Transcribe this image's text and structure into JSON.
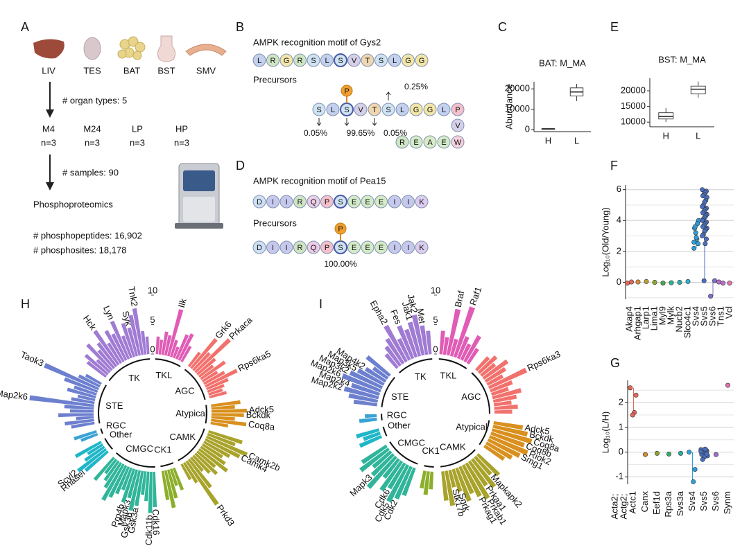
{
  "panel_a": {
    "letter": "A",
    "organs": [
      "LIV",
      "TES",
      "BAT",
      "BST",
      "SMV"
    ],
    "step1": "# organ types: 5",
    "groups": [
      {
        "name": "M4",
        "n": "n=3"
      },
      {
        "name": "M24",
        "n": "n=3"
      },
      {
        "name": "LP",
        "n": "n=3"
      },
      {
        "name": "HP",
        "n": "n=3"
      }
    ],
    "step2": "# samples: 90",
    "method": "Phosphoproteomics",
    "stats": [
      "# phosphopeptides: 16,902",
      "# phosphosites: 18,178"
    ]
  },
  "residue_colors": {
    "L": "#c3d0ee",
    "R": "#cfe6c4",
    "G": "#f2e6a8",
    "S": "#cfe3f3",
    "V": "#d5d0e8",
    "T": "#efd6b0",
    "P": "#f4c0cb",
    "W": "#f6d0dc",
    "E": "#d4ebc8",
    "A": "#d9ecc6",
    "D": "#cfe0f4",
    "I": "#c6c9ec",
    "Q": "#eccde6",
    "K": "#dccdee"
  },
  "panel_b": {
    "letter": "B",
    "title": "AMPK recognition motif of Gys2",
    "motif": [
      "L",
      "R",
      "G",
      "R",
      "S",
      "L",
      "S",
      "V",
      "T",
      "S",
      "L",
      "G",
      "G"
    ],
    "precursors_label": "Precursors",
    "phospho": "P",
    "precursor": [
      "S",
      "L",
      "S",
      "V",
      "T",
      "S",
      "L",
      "G",
      "G",
      "L",
      "P"
    ],
    "extension": [
      "V"
    ],
    "tail": [
      "R",
      "E",
      "A",
      "E",
      "W"
    ],
    "percents": [
      "0.05%",
      "99.65%",
      "0.05%",
      "0.25%"
    ]
  },
  "panel_d": {
    "letter": "D",
    "title": "AMPK recognition motif of Pea15",
    "motif": [
      "D",
      "I",
      "I",
      "R",
      "Q",
      "P",
      "S",
      "E",
      "E",
      "E",
      "I",
      "I",
      "K"
    ],
    "precursors_label": "Precursors",
    "phospho": "P",
    "precursor": [
      "D",
      "I",
      "I",
      "R",
      "Q",
      "P",
      "S",
      "E",
      "E",
      "E",
      "I",
      "I",
      "K"
    ],
    "percents": [
      "100.00%"
    ]
  },
  "panel_c": {
    "letter": "C",
    "type": "box",
    "title": "BAT: M_MA",
    "y_label": "Abundance",
    "categories": [
      "H",
      "L"
    ],
    "ylim": [
      -1000,
      23500
    ],
    "yticks": [
      0,
      10000,
      20000
    ],
    "boxes": [
      {
        "min": 0,
        "q1": 150,
        "median": 300,
        "q3": 500,
        "max": 800
      },
      {
        "min": 14000,
        "q1": 16500,
        "median": 18500,
        "q3": 20500,
        "max": 22500
      }
    ]
  },
  "panel_e": {
    "letter": "E",
    "type": "box",
    "title": "BST: M_MA",
    "categories": [
      "H",
      "L"
    ],
    "ylim": [
      8500,
      24000
    ],
    "yticks": [
      10000,
      15000,
      20000
    ],
    "boxes": [
      {
        "min": 10000,
        "q1": 11000,
        "median": 11800,
        "q3": 13000,
        "max": 14500
      },
      {
        "min": 17800,
        "q1": 19000,
        "median": 20500,
        "q3": 21500,
        "max": 23000
      }
    ]
  },
  "panel_f": {
    "letter": "F",
    "type": "strip",
    "y_label": "Log₁₀(Old/Young)",
    "ylim": [
      -1.1,
      6.3
    ],
    "yticks": [
      0,
      2,
      4,
      6
    ],
    "minor_grid": [
      -1,
      1,
      3,
      5
    ],
    "categories": [
      "Akap4",
      "Arhgap1",
      "Larp1",
      "Lima1",
      "Myl9",
      "Mylk",
      "Nucb2",
      "Slco4c1",
      "Svs4",
      "Svs5",
      "Svs6",
      "Tns1",
      "Vcl"
    ],
    "colors": [
      "#e8685a",
      "#e08a3a",
      "#b8a030",
      "#8aa830",
      "#4aab52",
      "#2db38a",
      "#2ab0a8",
      "#2fb0c8",
      "#2e9fd8",
      "#4a6fc0",
      "#7e6fc8",
      "#b86fc8",
      "#e070b0"
    ],
    "values": [
      [
        -0.05,
        0.02
      ],
      [
        0.02
      ],
      [
        0.05
      ],
      [
        0
      ],
      [
        -0.05
      ],
      [
        -0.03
      ],
      [
        0
      ],
      [
        0.05
      ],
      [
        2.2,
        2.5,
        2.8,
        3.2,
        3.5,
        4.0,
        3.8,
        2.9,
        3.6,
        2.6
      ],
      [
        6,
        5.9,
        5.8,
        5.7,
        5.6,
        5.5,
        5.3,
        5.2,
        5,
        4.9,
        4.8,
        4.7,
        4.6,
        4.5,
        4.4,
        4.3,
        4.2,
        4.1,
        4,
        3.9,
        3.8,
        3.7,
        3.6,
        3.5,
        3.4,
        3.3,
        3.1,
        3,
        2.8,
        2.5,
        0.1
      ],
      [
        -0.9,
        0.1
      ],
      [
        0.02,
        -0.05
      ],
      [
        -0.05
      ]
    ]
  },
  "panel_g": {
    "letter": "G",
    "type": "strip",
    "y_label": "Log₁₀(L/H)",
    "ylim": [
      -1.3,
      2.9
    ],
    "yticks": [
      -1,
      0,
      1,
      2
    ],
    "minor_grid": [
      -0.5,
      0.5,
      1.5,
      2.5
    ],
    "categories": [
      "Acta2; Actg2; Actc1",
      "Canx",
      "Eef1d",
      "Rps3a",
      "Svs3a",
      "Svs4",
      "Svs5",
      "Svs6",
      "Synm"
    ],
    "colors": [
      "#e8685a",
      "#d98a2a",
      "#8aa830",
      "#3aab6a",
      "#2ab0a8",
      "#2e9fd8",
      "#4a6fc0",
      "#9a6fc8",
      "#e070b0"
    ],
    "values": [
      [
        2.6,
        2.3,
        1.6,
        1.5
      ],
      [
        -0.1
      ],
      [
        -0.05
      ],
      [
        -0.08
      ],
      [
        -0.05
      ],
      [
        0,
        -0.7,
        -1.2
      ],
      [
        0.1,
        0.05,
        0,
        -0.05,
        -0.1,
        -0.15,
        0.08,
        -0.2,
        -0.3,
        0.02,
        -0.08,
        0.12
      ],
      [
        -0.1
      ],
      [
        2.7
      ]
    ]
  },
  "panel_h": {
    "letter": "H",
    "type": "radial_bar",
    "rlim": [
      0,
      10
    ],
    "rticks": [
      0,
      5,
      10
    ],
    "groups": [
      {
        "name": "TKL",
        "color": "#e05cb5",
        "values": [
          3,
          2.5,
          4,
          3.5,
          8.2,
          3,
          2,
          4.5,
          5,
          3
        ],
        "labels": [
          null,
          null,
          null,
          null,
          "Ilk",
          null,
          null,
          null,
          null,
          null
        ]
      },
      {
        "name": "AGC",
        "color": "#f2716d",
        "values": [
          3,
          6.5,
          4,
          8,
          4,
          3,
          5,
          3,
          4,
          6,
          4,
          3,
          2.5,
          3
        ],
        "labels": [
          null,
          "Grk6",
          null,
          "Prkaca",
          null,
          null,
          null,
          null,
          null,
          "Rps6ka5",
          null,
          null,
          null,
          null
        ]
      },
      {
        "name": "Atypical",
        "color": "#d9901e",
        "values": [
          5,
          4,
          6,
          5.5,
          4,
          6,
          3
        ],
        "labels": [
          null,
          null,
          "Adck5",
          "Bckdk",
          null,
          "Coq8a",
          null
        ]
      },
      {
        "name": "CAMK",
        "color": "#a8a32b",
        "values": [
          6,
          5,
          7.5,
          6.5,
          5,
          4,
          5,
          6,
          4,
          5,
          4,
          3,
          6,
          9,
          4,
          3
        ],
        "labels": [
          null,
          null,
          "Camk2b",
          "Camk4",
          null,
          null,
          null,
          null,
          null,
          null,
          null,
          null,
          null,
          "Prkd3",
          null,
          null
        ]
      },
      {
        "name": "CK1",
        "color": "#8cae2a",
        "values": [
          4,
          3,
          5,
          6.5,
          5
        ],
        "labels": [
          null,
          null,
          null,
          null,
          null
        ]
      },
      {
        "name": "CMGC",
        "color": "#30b59a",
        "values": [
          6,
          7,
          5,
          4,
          6,
          7,
          5,
          6,
          4,
          5,
          6,
          7,
          5,
          4,
          3,
          5
        ],
        "labels": [
          "Cdk16",
          "Cdk11b",
          null,
          null,
          "Gsk3a",
          "Gsk3b",
          "Mapk3",
          "Prp4b",
          null,
          null,
          null,
          null,
          null,
          null,
          null,
          null
        ]
      },
      {
        "name": "Other",
        "color": "#1fb6c8",
        "values": [
          5,
          6,
          4,
          3,
          5
        ],
        "labels": [
          "Rnasel",
          "Scyl2",
          null,
          null,
          null
        ]
      },
      {
        "name": "RGC",
        "color": "#3aa2d4",
        "values": [
          3,
          4
        ],
        "labels": [
          null,
          null
        ]
      },
      {
        "name": "STE",
        "color": "#6d80cf",
        "values": [
          4,
          5,
          3,
          6,
          4,
          5,
          11,
          4,
          3,
          5,
          4,
          6,
          10,
          4,
          3
        ],
        "labels": [
          null,
          null,
          null,
          null,
          null,
          null,
          "Map2k6",
          null,
          null,
          null,
          null,
          null,
          "Taok3",
          null,
          null
        ]
      },
      {
        "name": "TK",
        "color": "#a07bd3",
        "values": [
          4,
          5,
          3,
          6,
          4,
          5,
          7,
          4,
          6,
          5,
          7,
          4,
          6,
          5,
          7,
          8,
          4,
          3
        ],
        "labels": [
          null,
          null,
          null,
          null,
          null,
          null,
          "Hck",
          null,
          null,
          null,
          "Lyn",
          null,
          null,
          "Syk",
          null,
          "Tnk2",
          null,
          null
        ]
      }
    ]
  },
  "panel_i": {
    "letter": "I",
    "type": "radial_bar",
    "rlim": [
      0,
      10
    ],
    "rticks": [
      0,
      5,
      10
    ],
    "groups": [
      {
        "name": "TKL",
        "color": "#e05cb5",
        "values": [
          4,
          3,
          8,
          3,
          9,
          4,
          3,
          5,
          3
        ],
        "labels": [
          null,
          null,
          "Braf",
          null,
          "Raf1",
          null,
          null,
          null,
          null
        ]
      },
      {
        "name": "AGC",
        "color": "#f2716d",
        "values": [
          3,
          4,
          3,
          5,
          4,
          3,
          7,
          4,
          3,
          5,
          4,
          3,
          4,
          3
        ],
        "labels": [
          null,
          null,
          null,
          null,
          null,
          null,
          "Rps6ka3",
          null,
          null,
          null,
          null,
          null,
          null,
          null
        ]
      },
      {
        "name": "Atypical",
        "color": "#d9901e",
        "values": [
          5,
          6,
          7,
          6,
          7,
          6,
          5,
          4
        ],
        "labels": [
          "Adck5",
          "Bckdk",
          "Coq8a",
          "Coq8b",
          "Riok2",
          "Smg1",
          null,
          null
        ]
      },
      {
        "name": "CAMK",
        "color": "#a8a32b",
        "values": [
          5,
          4,
          6,
          5,
          7,
          6,
          5,
          6,
          4,
          3,
          6,
          5
        ],
        "labels": [
          null,
          "Mapkapk2",
          null,
          "Prkaa1",
          "Prkab1",
          "Prkag1",
          null,
          null,
          "Snrk",
          "Stk17b",
          null,
          null
        ]
      },
      {
        "name": "CK1",
        "color": "#8cae2a",
        "values": [
          3,
          4,
          3
        ],
        "labels": [
          null,
          null,
          null
        ]
      },
      {
        "name": "CMGC",
        "color": "#30b59a",
        "values": [
          5,
          6,
          7,
          5,
          6,
          4,
          7,
          5,
          4,
          6,
          5
        ],
        "labels": [
          null,
          "Cdk2",
          "Cdk5",
          "Cdk6",
          null,
          null,
          null,
          "Mapk3",
          null,
          null,
          null
        ]
      },
      {
        "name": "Other",
        "color": "#1fb6c8",
        "values": [
          4,
          3,
          4
        ],
        "labels": [
          null,
          null,
          null
        ]
      },
      {
        "name": "RGC",
        "color": "#3aa2d4",
        "values": [
          3,
          2
        ],
        "labels": [
          null,
          null
        ]
      },
      {
        "name": "STE",
        "color": "#6d80cf",
        "values": [
          4,
          5,
          6,
          5,
          7,
          6,
          5,
          4,
          3,
          5
        ],
        "labels": [
          null,
          null,
          "Map2k2",
          "Map2k4",
          "Map2k6",
          "Map3k2",
          "Map3k5",
          "Map4k2",
          null,
          null
        ]
      },
      {
        "name": "TK",
        "color": "#a07bd3",
        "values": [
          3,
          4,
          5,
          7,
          4,
          6,
          5,
          6,
          7,
          5,
          4
        ],
        "labels": [
          null,
          null,
          null,
          "Epha2",
          null,
          "Fes",
          null,
          "Jak1",
          "Jak2",
          "Met",
          null
        ]
      }
    ]
  }
}
